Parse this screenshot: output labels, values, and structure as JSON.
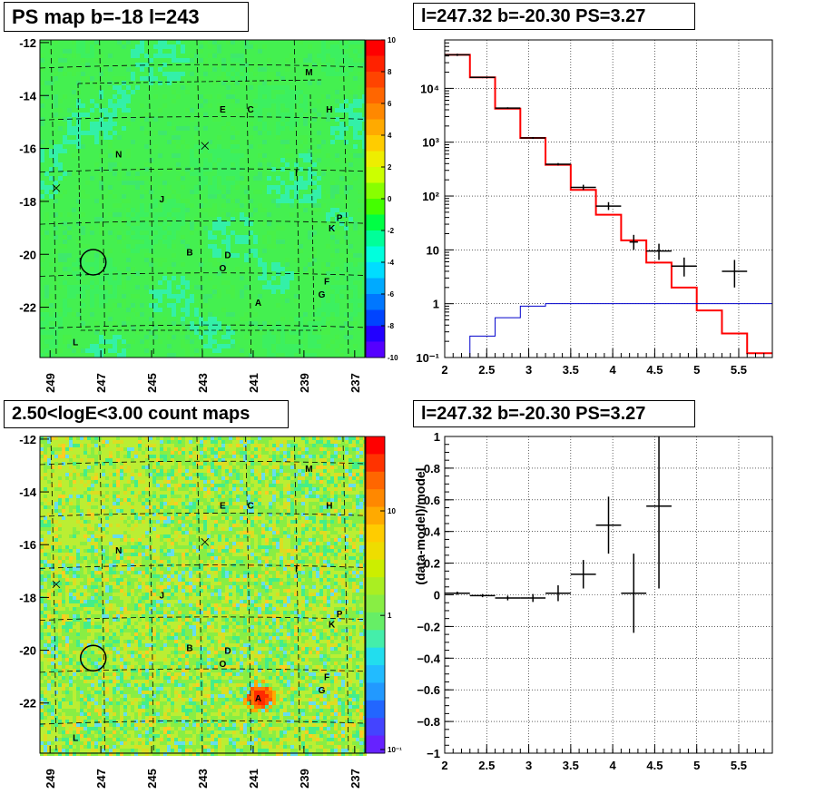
{
  "chart_data": [
    {
      "id": "ps-map",
      "type": "heatmap",
      "title": "PS map b=-18 l=243",
      "x_ticks": [
        "249",
        "247",
        "245",
        "243",
        "241",
        "239",
        "237"
      ],
      "y_ticks": [
        "-12",
        "-14",
        "-16",
        "-18",
        "-20",
        "-22"
      ],
      "xlim": [
        249.4,
        236.6
      ],
      "ylim": [
        -23.9,
        -11.9
      ],
      "colorbar_ticks": [
        "10",
        "8",
        "6",
        "4",
        "2",
        "0",
        "-2",
        "-4",
        "-6",
        "-8",
        "-10"
      ],
      "colorbar_range": [
        -10,
        10
      ],
      "sources": [
        {
          "label": "M",
          "l": 238.8,
          "b": -13.1
        },
        {
          "label": "E",
          "l": 242.2,
          "b": -14.5
        },
        {
          "label": "C",
          "l": 241.1,
          "b": -14.5
        },
        {
          "label": "H",
          "l": 238.0,
          "b": -14.5
        },
        {
          "label": "N",
          "l": 246.3,
          "b": -16.2
        },
        {
          "label": "I",
          "l": 239.3,
          "b": -16.9
        },
        {
          "label": "J",
          "l": 244.6,
          "b": -17.9
        },
        {
          "label": "P",
          "l": 237.6,
          "b": -18.6
        },
        {
          "label": "K",
          "l": 237.9,
          "b": -19.0
        },
        {
          "label": "B",
          "l": 243.5,
          "b": -19.9
        },
        {
          "label": "D",
          "l": 242.0,
          "b": -20.0
        },
        {
          "label": "O",
          "l": 242.2,
          "b": -20.5
        },
        {
          "label": "F",
          "l": 238.1,
          "b": -21.0
        },
        {
          "label": "G",
          "l": 238.3,
          "b": -21.5
        },
        {
          "label": "A",
          "l": 240.8,
          "b": -21.8
        },
        {
          "label": "L",
          "l": 248.0,
          "b": -23.3
        }
      ],
      "circle": {
        "l": 247.3,
        "b": -20.3
      }
    },
    {
      "id": "spectrum",
      "type": "line",
      "title": "l=247.32 b=-20.30 PS=3.27",
      "x_ticks": [
        "2",
        "2.5",
        "3",
        "3.5",
        "4",
        "4.5",
        "5",
        "5.5"
      ],
      "y_ticks": [
        "10⁻¹",
        "1",
        "10",
        "10²",
        "10³",
        "10⁴"
      ],
      "xlim": [
        2.0,
        5.9
      ],
      "ylim_log10": [
        -1,
        4.9
      ],
      "y_scale": "log",
      "grid": true,
      "bin_edges": [
        2.0,
        2.3,
        2.6,
        2.9,
        3.2,
        3.5,
        3.8,
        4.1,
        4.4,
        4.7,
        5.0,
        5.3,
        5.6,
        5.9
      ],
      "series": [
        {
          "color": "#ff0000",
          "values": [
            42000,
            16000,
            4200,
            1200,
            380,
            130,
            45,
            15,
            5.8,
            2.0,
            0.75,
            0.28,
            0.12
          ]
        },
        {
          "color": "#0000cc",
          "values": [
            0.1,
            0.25,
            0.55,
            0.9,
            1.0,
            1.0,
            1.0,
            1.0,
            1.0,
            1.0,
            1.0,
            1.0,
            1.0
          ]
        }
      ],
      "data_points": [
        {
          "x": 2.15,
          "y": 42000,
          "xerr": 0.15,
          "yerr_lo": 40000,
          "yerr_hi": 44000
        },
        {
          "x": 2.45,
          "y": 16000,
          "xerr": 0.15,
          "yerr_lo": 15500,
          "yerr_hi": 16500
        },
        {
          "x": 2.75,
          "y": 4300,
          "xerr": 0.15,
          "yerr_lo": 4150,
          "yerr_hi": 4450
        },
        {
          "x": 3.05,
          "y": 1200,
          "xerr": 0.15,
          "yerr_lo": 1150,
          "yerr_hi": 1250
        },
        {
          "x": 3.35,
          "y": 390,
          "xerr": 0.15,
          "yerr_lo": 370,
          "yerr_hi": 410
        },
        {
          "x": 3.65,
          "y": 145,
          "xerr": 0.15,
          "yerr_lo": 130,
          "yerr_hi": 162
        },
        {
          "x": 3.95,
          "y": 65,
          "xerr": 0.15,
          "yerr_lo": 55,
          "yerr_hi": 77
        },
        {
          "x": 4.25,
          "y": 14,
          "xerr": 0.05,
          "yerr_lo": 10,
          "yerr_hi": 19
        },
        {
          "x": 4.55,
          "y": 9.5,
          "xerr": 0.15,
          "yerr_lo": 6.5,
          "yerr_hi": 13
        },
        {
          "x": 4.85,
          "y": 5.0,
          "xerr": 0.15,
          "yerr_lo": 3.2,
          "yerr_hi": 7.2
        },
        {
          "x": 5.45,
          "y": 4.0,
          "xerr": 0.15,
          "yerr_lo": 2.0,
          "yerr_hi": 6.5
        }
      ]
    },
    {
      "id": "count-map",
      "type": "heatmap",
      "title": "2.50<logE<3.00 count maps",
      "x_ticks": [
        "249",
        "247",
        "245",
        "243",
        "241",
        "239",
        "237"
      ],
      "y_ticks": [
        "-12",
        "-14",
        "-16",
        "-18",
        "-20",
        "-22"
      ],
      "xlim": [
        249.4,
        236.6
      ],
      "ylim": [
        -23.9,
        -11.9
      ],
      "colorbar_ticks": [
        "10",
        "1",
        "10⁻¹"
      ],
      "colorbar_scale": "log",
      "hotspot": {
        "label": "A",
        "l": 240.8,
        "b": -21.7
      },
      "circle": {
        "l": 247.3,
        "b": -20.3
      }
    },
    {
      "id": "residuals",
      "type": "scatter",
      "title": "l=247.32 b=-20.30 PS=3.27",
      "ylabel": "(data-model)/model",
      "x_ticks": [
        "2",
        "2.5",
        "3",
        "3.5",
        "4",
        "4.5",
        "5",
        "5.5"
      ],
      "y_ticks": [
        "1",
        "0.8",
        "0.6",
        "0.4",
        "0.2",
        "0",
        "−0.2",
        "−0.4",
        "−0.6",
        "−0.8",
        "−1"
      ],
      "xlim": [
        2.0,
        5.9
      ],
      "ylim": [
        -1,
        1
      ],
      "grid": true,
      "data_points": [
        {
          "x": 2.15,
          "y": 0.01,
          "xerr": 0.15,
          "yerr": 0.01
        },
        {
          "x": 2.45,
          "y": -0.005,
          "xerr": 0.15,
          "yerr": 0.01
        },
        {
          "x": 2.75,
          "y": -0.02,
          "xerr": 0.15,
          "yerr": 0.015
        },
        {
          "x": 3.05,
          "y": -0.02,
          "xerr": 0.15,
          "yerr": 0.025
        },
        {
          "x": 3.35,
          "y": 0.01,
          "xerr": 0.15,
          "yerr": 0.05
        },
        {
          "x": 3.65,
          "y": 0.13,
          "xerr": 0.15,
          "yerr": 0.09
        },
        {
          "x": 3.95,
          "y": 0.44,
          "xerr": 0.15,
          "yerr": 0.18
        },
        {
          "x": 4.25,
          "y": 0.01,
          "xerr": 0.15,
          "yerr": 0.25
        },
        {
          "x": 4.55,
          "y": 0.56,
          "xerr": 0.15,
          "yerr": 0.52
        }
      ]
    }
  ]
}
